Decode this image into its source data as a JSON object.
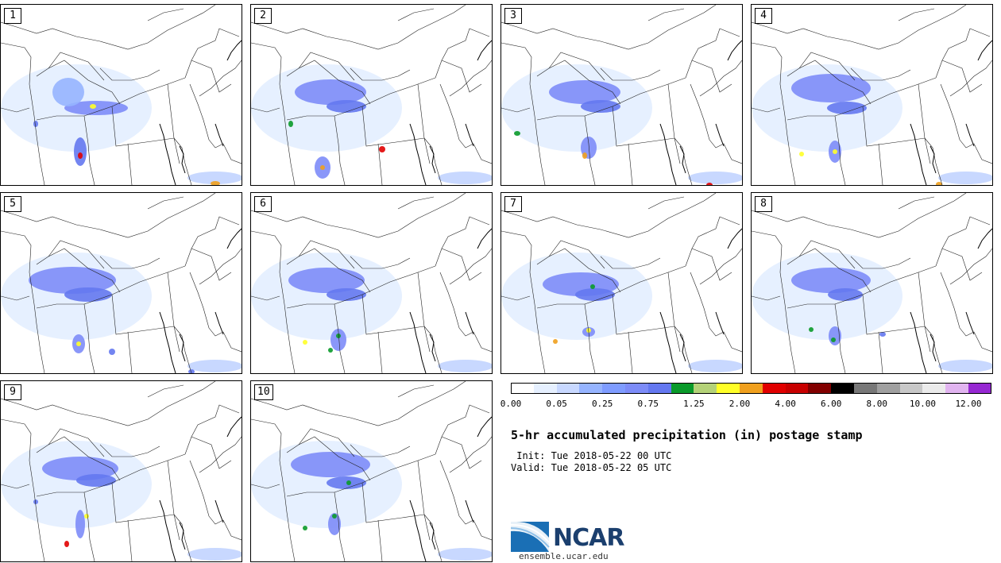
{
  "title": "5-hr accumulated precipitation (in) postage stamp",
  "init_text": " Init: Tue 2018-05-22 00 UTC",
  "valid_text": "Valid: Tue 2018-05-22 05 UTC",
  "site": "ensemble.ucar.edu",
  "logo_text": "NCAR",
  "panels": [
    "1",
    "2",
    "3",
    "4",
    "5",
    "6",
    "7",
    "8",
    "9",
    "10"
  ],
  "colorbar": {
    "colors": [
      "#ffffff",
      "#e6f0ff",
      "#c8d8ff",
      "#96b4ff",
      "#7f9cff",
      "#7d8cf8",
      "#6478f0",
      "#0a9a2a",
      "#b4d278",
      "#ffff28",
      "#f0a01e",
      "#e10000",
      "#c80000",
      "#820000",
      "#000000",
      "#787878",
      "#a0a0a0",
      "#c8c8c8",
      "#ebebeb",
      "#e1b4f0",
      "#9628d2"
    ],
    "tick_labels": [
      "0.00",
      "0.05",
      "0.25",
      "0.75",
      "1.25",
      "2.00",
      "4.00",
      "6.00",
      "8.00",
      "10.00",
      "12.00"
    ]
  }
}
